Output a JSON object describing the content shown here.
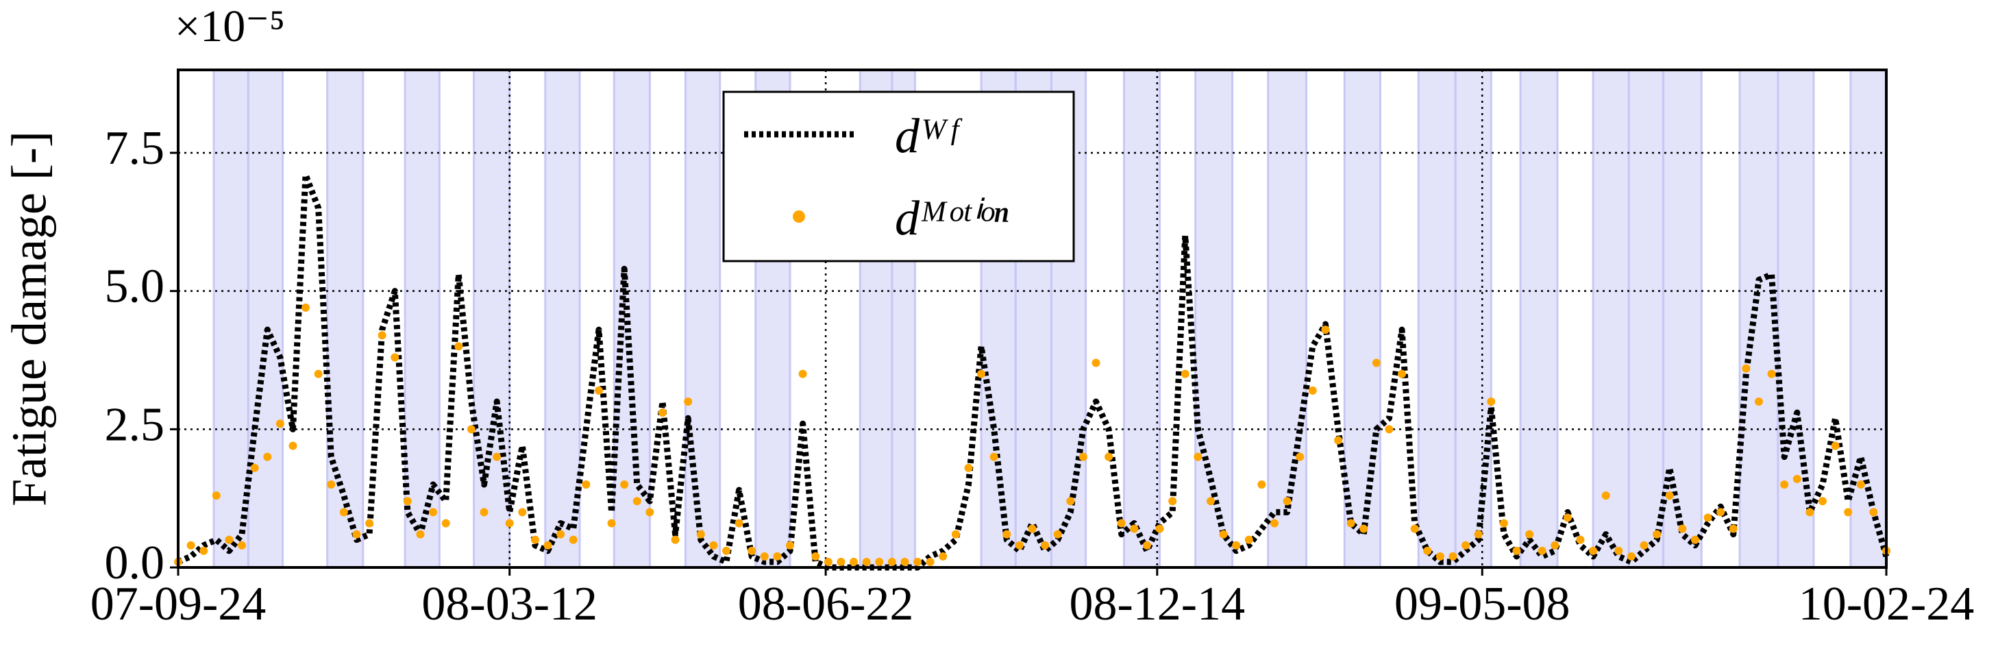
{
  "chart_data": {
    "type": "line",
    "y_label": "Fatigue damage [-]",
    "y_multiplier": "×10⁻⁵",
    "x": [
      0,
      10,
      20,
      30,
      40,
      50,
      60,
      70,
      80,
      90,
      100,
      110,
      120,
      130,
      140,
      150,
      160,
      170,
      180,
      190,
      200,
      210,
      220,
      230,
      240,
      250,
      260,
      270,
      280,
      290,
      300,
      310,
      320,
      330,
      340,
      350,
      360,
      370,
      380,
      390,
      400,
      410,
      420,
      430,
      440,
      450,
      460,
      470,
      480,
      490,
      500,
      510,
      520,
      530,
      540,
      550,
      560,
      570,
      580,
      590,
      600,
      610,
      620,
      630,
      640,
      650,
      660,
      670,
      680,
      690,
      700,
      710,
      720,
      730,
      740,
      750,
      760,
      770,
      780,
      790,
      800,
      810,
      820,
      830,
      840,
      850,
      860,
      870,
      880,
      890,
      900,
      910,
      920,
      930,
      940,
      950,
      960,
      970,
      980,
      990,
      1000,
      1010,
      1020,
      1030,
      1040,
      1050,
      1060,
      1070,
      1080,
      1090,
      1100,
      1110,
      1120,
      1130,
      1140,
      1150,
      1160,
      1170,
      1180,
      1190,
      1200,
      1210,
      1220,
      1230,
      1240,
      1250,
      1260,
      1270,
      1280,
      1290,
      1300,
      1310,
      1320,
      1330,
      1340
    ],
    "series": [
      {
        "name": "dᵂᶠ",
        "color": "#000000",
        "style": "dotted",
        "values": [
          0.1,
          0.2,
          0.4,
          0.5,
          0.3,
          0.6,
          2.5,
          4.3,
          3.8,
          2.5,
          7.1,
          6.5,
          2.0,
          1.3,
          0.5,
          0.6,
          4.3,
          5.0,
          1.0,
          0.6,
          1.5,
          1.2,
          5.3,
          3.0,
          1.5,
          3.0,
          1.0,
          2.2,
          0.4,
          0.3,
          0.8,
          0.7,
          2.5,
          4.3,
          1.0,
          5.4,
          1.5,
          1.2,
          3.0,
          0.6,
          2.7,
          0.5,
          0.2,
          0.1,
          1.4,
          0.2,
          0.1,
          0.1,
          0.3,
          2.6,
          0.1,
          0.0,
          0.0,
          0.0,
          0.0,
          0.0,
          0.0,
          0.0,
          0.0,
          0.2,
          0.3,
          0.5,
          1.5,
          4.0,
          2.5,
          0.5,
          0.3,
          0.8,
          0.3,
          0.5,
          1.0,
          2.5,
          3.0,
          2.5,
          0.6,
          0.8,
          0.3,
          0.8,
          1.0,
          6.0,
          2.5,
          1.6,
          0.6,
          0.3,
          0.4,
          0.7,
          1.0,
          1.0,
          2.5,
          4.0,
          4.4,
          2.5,
          0.8,
          0.6,
          2.5,
          2.7,
          4.3,
          0.8,
          0.3,
          0.1,
          0.1,
          0.3,
          0.5,
          2.9,
          0.6,
          0.2,
          0.5,
          0.2,
          0.3,
          1.0,
          0.4,
          0.2,
          0.6,
          0.2,
          0.1,
          0.3,
          0.5,
          1.8,
          0.6,
          0.4,
          0.8,
          1.1,
          0.6,
          3.5,
          5.2,
          5.3,
          2.0,
          2.8,
          1.0,
          1.5,
          2.7,
          1.2,
          2.0,
          1.0,
          0.2
        ]
      },
      {
        "name": "dᴹᵒᵗⁱᵒⁿ",
        "color": "#ffa500",
        "style": "dots",
        "values": [
          0.1,
          0.4,
          0.3,
          1.3,
          0.5,
          0.4,
          1.8,
          2.0,
          2.6,
          2.2,
          4.7,
          3.5,
          1.5,
          1.0,
          0.6,
          0.8,
          4.2,
          3.8,
          1.2,
          0.6,
          1.0,
          0.8,
          4.0,
          2.5,
          1.0,
          2.0,
          0.8,
          1.0,
          0.5,
          0.4,
          0.6,
          0.5,
          1.5,
          3.2,
          0.8,
          1.5,
          1.2,
          1.0,
          2.8,
          0.5,
          3.0,
          0.6,
          0.4,
          0.3,
          0.8,
          0.3,
          0.2,
          0.2,
          0.4,
          3.5,
          0.2,
          0.1,
          0.1,
          0.1,
          0.1,
          0.1,
          0.1,
          0.1,
          0.1,
          0.1,
          0.2,
          0.6,
          1.8,
          3.5,
          2.0,
          0.6,
          0.4,
          0.7,
          0.4,
          0.6,
          1.2,
          2.0,
          3.7,
          2.0,
          0.8,
          0.7,
          0.4,
          0.7,
          1.2,
          3.5,
          2.0,
          1.2,
          0.6,
          0.4,
          0.5,
          1.5,
          0.8,
          1.2,
          2.0,
          3.2,
          4.3,
          2.3,
          0.8,
          0.7,
          3.7,
          2.5,
          3.5,
          0.7,
          0.3,
          0.2,
          0.2,
          0.4,
          0.6,
          3.0,
          0.8,
          0.3,
          0.6,
          0.3,
          0.4,
          0.9,
          0.5,
          0.3,
          1.3,
          0.3,
          0.2,
          0.4,
          0.6,
          1.3,
          0.7,
          0.5,
          0.9,
          1.0,
          0.7,
          3.6,
          3.0,
          3.5,
          1.5,
          1.6,
          1.0,
          1.2,
          2.2,
          1.0,
          1.5,
          1.0,
          0.3
        ]
      }
    ],
    "xlim": [
      0,
      1340
    ],
    "xticks": [
      {
        "value": 0,
        "label": "07-09-24"
      },
      {
        "value": 260,
        "label": "08-03-12"
      },
      {
        "value": 508,
        "label": "08-06-22"
      },
      {
        "value": 768,
        "label": "08-12-14"
      },
      {
        "value": 1023,
        "label": "09-05-08"
      },
      {
        "value": 1340,
        "label": "10-02-24"
      }
    ],
    "ylim": [
      0,
      9
    ],
    "yticks": [
      {
        "value": 0,
        "label": "0.0"
      },
      2.5,
      {
        "value": 5,
        "label": "5.0"
      },
      7.5
    ],
    "grid": true,
    "legend": "upper center",
    "shade_color": "#c8c8f5",
    "shaded_spans": [
      [
        28,
        55
      ],
      [
        55,
        82
      ],
      [
        117,
        145
      ],
      [
        178,
        205
      ],
      [
        232,
        260
      ],
      [
        288,
        315
      ],
      [
        342,
        370
      ],
      [
        398,
        425
      ],
      [
        453,
        480
      ],
      [
        535,
        560
      ],
      [
        560,
        578
      ],
      [
        630,
        657
      ],
      [
        657,
        685
      ],
      [
        685,
        712
      ],
      [
        742,
        770
      ],
      [
        798,
        827
      ],
      [
        855,
        885
      ],
      [
        915,
        943
      ],
      [
        973,
        1002
      ],
      [
        1002,
        1030
      ],
      [
        1053,
        1082
      ],
      [
        1110,
        1138
      ],
      [
        1138,
        1165
      ],
      [
        1165,
        1195
      ],
      [
        1225,
        1255
      ],
      [
        1255,
        1283
      ],
      [
        1312,
        1340
      ]
    ]
  }
}
